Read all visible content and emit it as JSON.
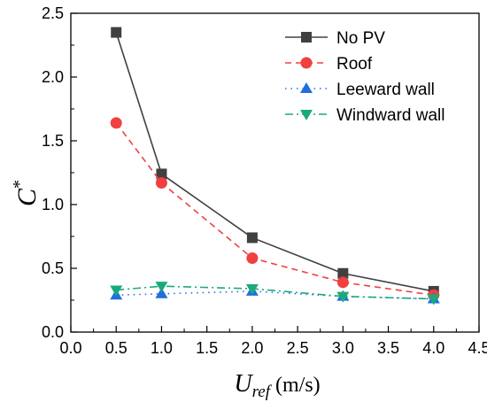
{
  "chart_data": {
    "type": "line",
    "xlim": [
      0.0,
      4.5
    ],
    "ylim": [
      0.0,
      2.5
    ],
    "x_ticks": [
      "0.0",
      "0.5",
      "1.0",
      "1.5",
      "2.0",
      "2.5",
      "3.0",
      "3.5",
      "4.0",
      "4.5"
    ],
    "y_ticks": [
      "0.0",
      "0.5",
      "1.0",
      "1.5",
      "2.0",
      "2.5"
    ],
    "xlabel_main": "U",
    "xlabel_sub": "ref",
    "xlabel_unit": " (m/s)",
    "ylabel_main": "C",
    "ylabel_sup": "*",
    "grid": false,
    "legend_position": "top-right",
    "x": [
      0.5,
      1.0,
      2.0,
      3.0,
      4.0
    ],
    "series": [
      {
        "name": "No PV",
        "values": [
          2.35,
          1.24,
          0.74,
          0.46,
          0.32
        ],
        "color": "#404040",
        "dash": "solid",
        "marker": "square"
      },
      {
        "name": "Roof",
        "values": [
          1.64,
          1.17,
          0.58,
          0.39,
          0.29
        ],
        "color": "#f04040",
        "dash": "dash",
        "marker": "circle"
      },
      {
        "name": "Leeward wall",
        "values": [
          0.29,
          0.3,
          0.32,
          0.28,
          0.26
        ],
        "color": "#1f6fe0",
        "dash": "dot",
        "marker": "triangle-up"
      },
      {
        "name": "Windward wall",
        "values": [
          0.33,
          0.36,
          0.34,
          0.28,
          0.26
        ],
        "color": "#1aaa7a",
        "dash": "dashdot",
        "marker": "triangle-down"
      }
    ]
  }
}
